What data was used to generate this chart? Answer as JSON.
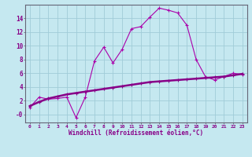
{
  "title": "",
  "xlabel": "Windchill (Refroidissement éolien,°C)",
  "bg_color": "#c5e8f0",
  "grid_color": "#a0ccd8",
  "line_color": "#880088",
  "line_color2": "#aa00aa",
  "axis_color": "#666677",
  "text_color": "#880088",
  "xlim": [
    -0.5,
    23.5
  ],
  "ylim": [
    -1.2,
    16.0
  ],
  "xticks": [
    0,
    1,
    2,
    3,
    4,
    5,
    6,
    7,
    8,
    9,
    10,
    11,
    12,
    13,
    14,
    15,
    16,
    17,
    18,
    19,
    20,
    21,
    22,
    23
  ],
  "yticks": [
    0,
    2,
    4,
    6,
    8,
    10,
    12,
    14
  ],
  "ytick_labels": [
    "-0",
    "2",
    "4",
    "6",
    "8",
    "10",
    "12",
    "14"
  ],
  "curve1_x": [
    0,
    1,
    2,
    3,
    4,
    5,
    6,
    7,
    8,
    9,
    10,
    11,
    12,
    13,
    14,
    15,
    16,
    17,
    18,
    19,
    20,
    21,
    22,
    23
  ],
  "curve1_y": [
    1.0,
    2.5,
    2.2,
    2.3,
    2.5,
    -0.5,
    2.5,
    7.8,
    9.8,
    7.5,
    9.5,
    12.5,
    12.8,
    14.2,
    15.5,
    15.2,
    14.8,
    13.0,
    8.0,
    5.5,
    5.0,
    5.5,
    6.0,
    5.8
  ],
  "curve2_x": [
    0,
    1,
    2,
    3,
    4,
    5,
    6,
    7,
    8,
    9,
    10,
    11,
    12,
    13,
    14,
    15,
    16,
    17,
    18,
    19,
    20,
    21,
    22,
    23
  ],
  "curve2_y": [
    1.2,
    1.8,
    2.3,
    2.6,
    2.9,
    3.1,
    3.3,
    3.5,
    3.7,
    3.9,
    4.1,
    4.3,
    4.5,
    4.7,
    4.8,
    4.9,
    5.0,
    5.1,
    5.2,
    5.3,
    5.4,
    5.5,
    5.7,
    5.9
  ]
}
